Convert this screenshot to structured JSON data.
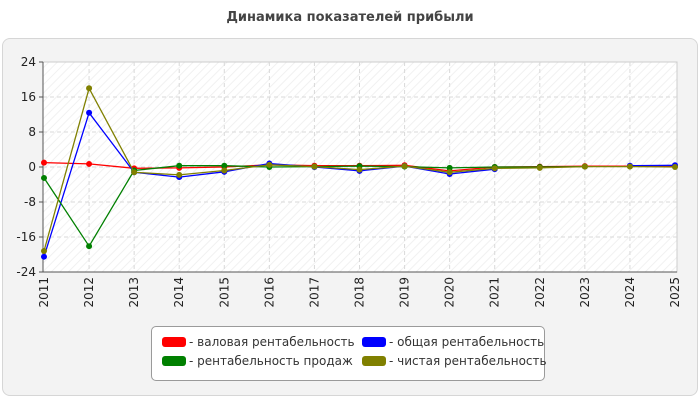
{
  "chart_data": {
    "type": "line",
    "title": "Динамика показателей прибыли",
    "x": [
      "2011",
      "2012",
      "2013",
      "2014",
      "2015",
      "2016",
      "2017",
      "2018",
      "2019",
      "2020",
      "2021",
      "2022",
      "2023",
      "2024",
      "2025"
    ],
    "ylim": [
      -24,
      24
    ],
    "yticks": [
      "24",
      "16",
      "8",
      "0",
      "-8",
      "-16",
      "-24"
    ],
    "grid": true,
    "legend_position": "bottom-center",
    "series": [
      {
        "name": "- валовая рентабельность",
        "color": "#ff0000",
        "values": [
          1.0,
          0.7,
          -0.3,
          -0.2,
          0.0,
          0.5,
          0.3,
          0.3,
          0.4,
          -0.9,
          0.0,
          0.1,
          0.2,
          0.2,
          0.2
        ]
      },
      {
        "name": "- общая рентабельность",
        "color": "#0000ff",
        "values": [
          -20.5,
          12.4,
          -1.2,
          -2.3,
          -1.1,
          0.8,
          0.0,
          -0.9,
          0.2,
          -1.6,
          -0.5,
          null,
          null,
          0.3,
          0.4
        ]
      },
      {
        "name": "- рентабельность продаж",
        "color": "#008000",
        "values": [
          -2.5,
          -18.1,
          -0.8,
          0.3,
          0.3,
          0.0,
          0.1,
          0.2,
          0.1,
          -0.2,
          0.0,
          0.0,
          0.1,
          null,
          null
        ]
      },
      {
        "name": "- чистая рентабельность",
        "color": "#808000",
        "values": [
          -19.2,
          18.0,
          -1.2,
          -1.8,
          -0.8,
          0.5,
          0.1,
          -0.6,
          0.2,
          -1.2,
          -0.3,
          -0.2,
          0.1,
          0.1,
          0.0
        ]
      }
    ]
  }
}
